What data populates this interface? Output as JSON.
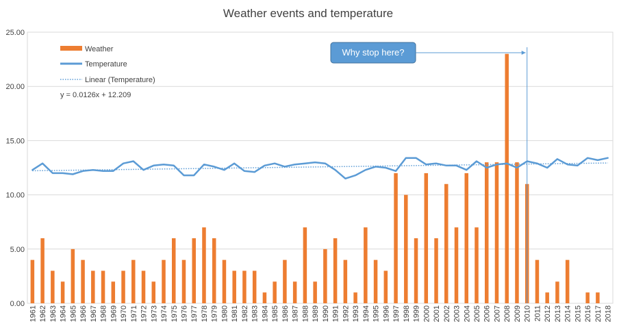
{
  "chart_data": {
    "type": "bar",
    "title": "Weather events and temperature",
    "categories": [
      "1961",
      "1962",
      "1963",
      "1964",
      "1965",
      "1966",
      "1967",
      "1968",
      "1969",
      "1970",
      "1971",
      "1972",
      "1973",
      "1974",
      "1975",
      "1976",
      "1977",
      "1978",
      "1979",
      "1980",
      "1981",
      "1982",
      "1983",
      "1984",
      "1985",
      "1986",
      "1987",
      "1988",
      "1989",
      "1990",
      "1991",
      "1992",
      "1993",
      "1994",
      "1995",
      "1996",
      "1997",
      "1998",
      "1999",
      "2000",
      "2001",
      "2002",
      "2003",
      "2004",
      "2005",
      "2006",
      "2007",
      "2008",
      "2009",
      "2010",
      "2011",
      "2012",
      "2013",
      "2014",
      "2015",
      "2016",
      "2017",
      "2018"
    ],
    "ylim": [
      0,
      25
    ],
    "yticks": [
      "0.00",
      "5.00",
      "10.00",
      "15.00",
      "20.00",
      "25.00"
    ],
    "series": [
      {
        "name": "Weather",
        "kind": "bar",
        "color": "#ED7D31",
        "values": [
          4,
          6,
          3,
          2,
          5,
          4,
          3,
          3,
          2,
          3,
          4,
          3,
          2,
          4,
          6,
          4,
          6,
          7,
          6,
          4,
          3,
          3,
          3,
          1,
          2,
          4,
          2,
          7,
          2,
          5,
          6,
          4,
          1,
          7,
          4,
          3,
          12,
          10,
          6,
          12,
          6,
          11,
          7,
          12,
          7,
          13,
          13,
          23,
          13,
          11,
          4,
          1,
          2,
          4,
          0,
          1,
          1,
          0
        ]
      },
      {
        "name": "Temperature",
        "kind": "line",
        "color": "#5B9BD5",
        "values": [
          12.3,
          12.9,
          12.0,
          12.0,
          11.9,
          12.2,
          12.3,
          12.2,
          12.2,
          12.9,
          13.1,
          12.3,
          12.7,
          12.8,
          12.7,
          11.8,
          11.8,
          12.8,
          12.6,
          12.3,
          12.9,
          12.2,
          12.1,
          12.7,
          12.9,
          12.6,
          12.8,
          12.9,
          13.0,
          12.9,
          12.3,
          11.5,
          11.8,
          12.3,
          12.6,
          12.5,
          12.2,
          13.4,
          13.4,
          12.8,
          12.9,
          12.7,
          12.7,
          12.3,
          13.1,
          12.5,
          12.8,
          12.9,
          12.5,
          13.1,
          12.9,
          12.5,
          13.3,
          12.8,
          12.7,
          13.4,
          13.2,
          13.4
        ]
      }
    ],
    "trendline": {
      "name": "Linear (Temperature)",
      "color": "#5B9BD5",
      "slope": 0.0126,
      "intercept": 12.209,
      "equation": "y = 0.0126x + 12.209"
    },
    "legend": [
      "Weather",
      "Temperature",
      "Linear (Temperature)"
    ],
    "legend_position": "top-left",
    "annotation": {
      "text": "Why stop here?",
      "color": "#5B9BD5",
      "target_category": "2010"
    },
    "grid": true
  }
}
